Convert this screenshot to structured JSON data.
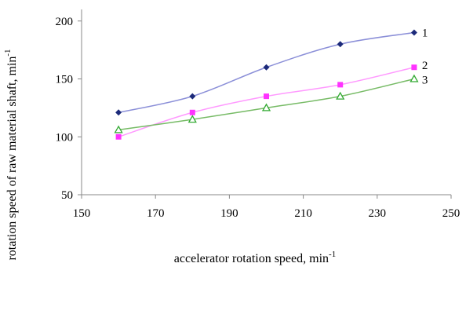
{
  "chart_data": {
    "type": "line",
    "xlabel": "accelerator rotation speed, min",
    "xlabel_sup": "-1",
    "ylabel": "rotation speed of raw material shaft, min",
    "ylabel_sup": "-1",
    "xlim": [
      150,
      250
    ],
    "ylim": [
      50,
      200
    ],
    "xticks": [
      "150",
      "170",
      "190",
      "210",
      "230",
      "250"
    ],
    "yticks": [
      "50",
      "100",
      "150",
      "200"
    ],
    "grid": false,
    "legend": "none",
    "x": [
      160,
      180,
      200,
      220,
      240
    ],
    "series": [
      {
        "name": "1",
        "values": [
          121,
          135,
          160,
          180,
          190
        ],
        "color": "#8b8fd8",
        "marker": "diamond",
        "marker_color": "#1c2a7a"
      },
      {
        "name": "2",
        "values": [
          100,
          121,
          135,
          145,
          160
        ],
        "color": "#ff99ff",
        "marker": "square",
        "marker_color": "#ff33ff"
      },
      {
        "name": "3",
        "values": [
          106,
          115,
          125,
          135,
          150
        ],
        "color": "#77bb66",
        "marker": "triangle",
        "marker_color": "#33aa33"
      }
    ]
  }
}
